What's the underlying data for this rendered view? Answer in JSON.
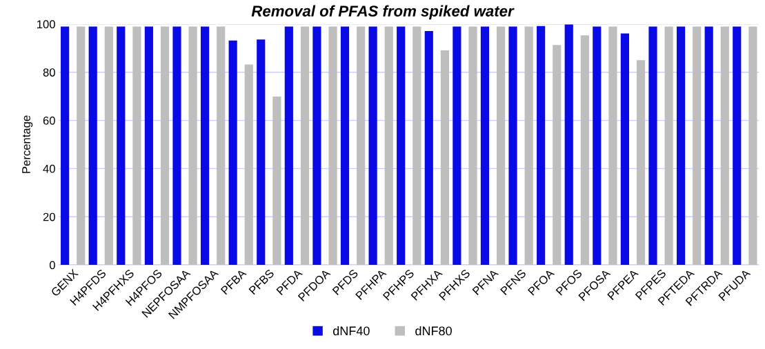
{
  "chart_data": {
    "type": "bar",
    "title": "Removal of PFAS from spiked water",
    "ylabel": "Percentage",
    "categories": [
      "GENX",
      "H4PFDS",
      "H4PFHXS",
      "H4PFOS",
      "NEPFOSAA",
      "NMPFOSAA",
      "PFBA",
      "PFBS",
      "PFDA",
      "PFDOA",
      "PFDS",
      "PFHPA",
      "PFHPS",
      "PFHXA",
      "PFHXS",
      "PFNA",
      "PFNS",
      "PFOA",
      "PFOS",
      "PFOSA",
      "PFPEA",
      "PFPES",
      "PFTEDA",
      "PFTRDA",
      "PFUDA"
    ],
    "series": [
      {
        "name": "dNF40",
        "color": "#0a0ae6",
        "values": [
          99,
          99,
          99,
          99,
          99,
          99,
          93.2,
          93.6,
          99,
          99,
          99,
          99,
          99,
          97.1,
          99,
          99,
          99,
          99.2,
          99.8,
          99,
          96.1,
          99,
          99,
          99,
          99
        ]
      },
      {
        "name": "dNF80",
        "color": "#bebebe",
        "values": [
          99,
          99,
          99,
          99,
          99,
          99,
          83.2,
          69.9,
          99,
          99,
          99,
          99,
          99,
          89.1,
          99,
          99,
          99,
          91.3,
          95.3,
          99,
          85,
          99,
          99,
          99,
          99
        ]
      }
    ],
    "ylim": [
      0,
      100
    ],
    "yticks": [
      0,
      20,
      40,
      60,
      80,
      100
    ],
    "grid": "y",
    "legend": "bottom"
  }
}
